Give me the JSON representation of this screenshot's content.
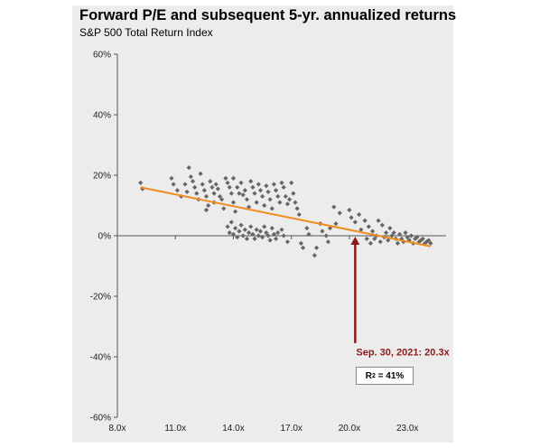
{
  "chart_data": {
    "type": "scatter",
    "title": "Forward P/E and subsequent 5-yr. annualized returns",
    "subtitle": "S&P 500 Total Return Index",
    "xlim": [
      8,
      25
    ],
    "ylim": [
      -60,
      60
    ],
    "x_ticks": [
      8,
      11,
      14,
      17,
      20,
      23
    ],
    "x_tick_labels": [
      "8.0x",
      "11.0x",
      "14.0x",
      "17.0x",
      "20.0x",
      "23.0x"
    ],
    "y_ticks": [
      -60,
      -40,
      -20,
      0,
      20,
      40,
      60
    ],
    "y_tick_labels": [
      "-60%",
      "-40%",
      "-20%",
      "0%",
      "20%",
      "40%",
      "60%"
    ],
    "trendline": {
      "x": [
        9.2,
        24.2
      ],
      "y": [
        16.0,
        -3.5
      ]
    },
    "annotation": {
      "label": "Sep. 30, 2021: 20.3x",
      "x": 20.3
    },
    "r2_label": "R",
    "r2_value": "= 41%",
    "points": [
      [
        9.2,
        17.5
      ],
      [
        9.3,
        15.5
      ],
      [
        10.8,
        19
      ],
      [
        10.9,
        17
      ],
      [
        11.1,
        15
      ],
      [
        11.3,
        13
      ],
      [
        11.5,
        17
      ],
      [
        11.6,
        14.5
      ],
      [
        11.7,
        22.5
      ],
      [
        11.8,
        19.5
      ],
      [
        11.9,
        18
      ],
      [
        12.0,
        16
      ],
      [
        12.1,
        14
      ],
      [
        12.2,
        12
      ],
      [
        12.3,
        20.5
      ],
      [
        12.4,
        17
      ],
      [
        12.5,
        15
      ],
      [
        12.6,
        13
      ],
      [
        12.7,
        10
      ],
      [
        12.8,
        18
      ],
      [
        12.9,
        16
      ],
      [
        13.0,
        14
      ],
      [
        13.0,
        11
      ],
      [
        12.6,
        8.5
      ],
      [
        13.1,
        17
      ],
      [
        13.2,
        15.5
      ],
      [
        13.3,
        13
      ],
      [
        13.4,
        12
      ],
      [
        13.5,
        9
      ],
      [
        13.6,
        19
      ],
      [
        13.7,
        17.5
      ],
      [
        13.8,
        16
      ],
      [
        13.9,
        14
      ],
      [
        14.0,
        19
      ],
      [
        14.0,
        11
      ],
      [
        14.1,
        8
      ],
      [
        14.2,
        16
      ],
      [
        14.3,
        14
      ],
      [
        14.4,
        17.5
      ],
      [
        14.5,
        13.5
      ],
      [
        14.6,
        15
      ],
      [
        14.7,
        12
      ],
      [
        14.8,
        9.5
      ],
      [
        14.9,
        18
      ],
      [
        15.0,
        16
      ],
      [
        15.1,
        14
      ],
      [
        15.2,
        11
      ],
      [
        15.3,
        17
      ],
      [
        15.4,
        15
      ],
      [
        15.5,
        13
      ],
      [
        15.6,
        10
      ],
      [
        15.7,
        16.5
      ],
      [
        15.8,
        14.5
      ],
      [
        15.9,
        12
      ],
      [
        16.0,
        9
      ],
      [
        16.1,
        17
      ],
      [
        16.2,
        15
      ],
      [
        16.3,
        13
      ],
      [
        16.4,
        11
      ],
      [
        16.5,
        17.5
      ],
      [
        16.6,
        16
      ],
      [
        16.7,
        13
      ],
      [
        16.8,
        10.5
      ],
      [
        16.9,
        12
      ],
      [
        17.0,
        17.5
      ],
      [
        17.1,
        14
      ],
      [
        17.2,
        11
      ],
      [
        17.3,
        9
      ],
      [
        17.4,
        7
      ],
      [
        13.7,
        3
      ],
      [
        13.8,
        1
      ],
      [
        13.9,
        4.5
      ],
      [
        14.0,
        0.5
      ],
      [
        14.1,
        2.5
      ],
      [
        14.2,
        -0.5
      ],
      [
        14.3,
        1.5
      ],
      [
        14.4,
        3.5
      ],
      [
        14.5,
        0
      ],
      [
        14.6,
        2
      ],
      [
        14.7,
        -1
      ],
      [
        14.8,
        1
      ],
      [
        14.9,
        3
      ],
      [
        15.0,
        0.5
      ],
      [
        15.1,
        -1
      ],
      [
        15.2,
        2
      ],
      [
        15.3,
        0
      ],
      [
        15.4,
        1.5
      ],
      [
        15.5,
        -0.5
      ],
      [
        15.6,
        3
      ],
      [
        15.7,
        1
      ],
      [
        15.8,
        0
      ],
      [
        15.9,
        -1.5
      ],
      [
        16.0,
        2.5
      ],
      [
        16.1,
        0.5
      ],
      [
        16.2,
        -1
      ],
      [
        16.3,
        1
      ],
      [
        16.5,
        2
      ],
      [
        16.6,
        0
      ],
      [
        16.8,
        -2
      ],
      [
        17.5,
        -2.5
      ],
      [
        17.6,
        -4
      ],
      [
        17.8,
        2.5
      ],
      [
        17.9,
        0.5
      ],
      [
        18.2,
        -6.5
      ],
      [
        18.3,
        -4
      ],
      [
        18.5,
        4
      ],
      [
        18.6,
        1.5
      ],
      [
        18.8,
        0
      ],
      [
        18.9,
        -2
      ],
      [
        19.0,
        2.5
      ],
      [
        19.3,
        4
      ],
      [
        19.5,
        7.5
      ],
      [
        19.2,
        9.5
      ],
      [
        20.0,
        8.5
      ],
      [
        20.1,
        6
      ],
      [
        20.3,
        4.5
      ],
      [
        20.5,
        7
      ],
      [
        20.6,
        2
      ],
      [
        20.8,
        5
      ],
      [
        20.9,
        -1
      ],
      [
        21.0,
        3
      ],
      [
        21.1,
        -2.5
      ],
      [
        21.2,
        1.5
      ],
      [
        21.3,
        -1
      ],
      [
        21.4,
        0
      ],
      [
        21.5,
        5
      ],
      [
        21.6,
        -2
      ],
      [
        21.7,
        3.5
      ],
      [
        21.8,
        -0.5
      ],
      [
        21.9,
        1
      ],
      [
        22.0,
        -1.5
      ],
      [
        22.1,
        2.5
      ],
      [
        22.2,
        0
      ],
      [
        22.3,
        1
      ],
      [
        22.4,
        -1
      ],
      [
        22.5,
        -2.5
      ],
      [
        22.6,
        0.5
      ],
      [
        22.7,
        -1
      ],
      [
        22.8,
        -2
      ],
      [
        22.9,
        1
      ],
      [
        23.0,
        -0.5
      ],
      [
        23.1,
        -1.5
      ],
      [
        23.2,
        0
      ],
      [
        23.3,
        -2.5
      ],
      [
        23.4,
        -1
      ],
      [
        23.5,
        -0.5
      ],
      [
        23.6,
        -2
      ],
      [
        23.7,
        -1.5
      ],
      [
        23.8,
        -1
      ],
      [
        23.9,
        -2.5
      ],
      [
        24.0,
        -2
      ],
      [
        24.1,
        -1.5
      ],
      [
        24.2,
        -2.5
      ]
    ]
  }
}
